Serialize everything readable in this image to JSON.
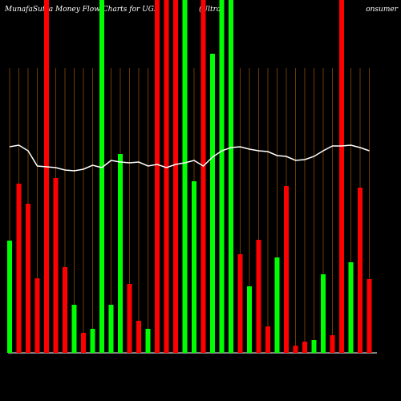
{
  "chart_data": {
    "type": "bar",
    "title": "MunafaSutra  Money Flow  Charts for UGE",
    "subtitle": "(Ultra",
    "right_title": "onsumer",
    "categories": [
      null,
      null,
      null,
      null,
      null,
      null,
      null,
      null,
      null,
      null,
      null,
      null,
      null,
      null,
      null,
      null,
      null,
      null,
      null,
      null,
      null,
      null,
      null,
      null,
      null,
      null,
      null,
      null,
      null,
      null,
      null,
      null,
      null,
      null,
      null,
      null,
      null,
      null,
      null,
      null
    ],
    "series": [
      {
        "type": "bar",
        "colors": [
          "#00ff00",
          "#ff0000",
          "#ff0000",
          "#ff0000",
          "#ff0000",
          "#ff0000",
          "#ff0000",
          "#00ff00",
          "#ff0000",
          "#00ff00",
          "#00ff00",
          "#00ff00",
          "#00ff00",
          "#ff0000",
          "#ff0000",
          "#00ff00",
          "#ff0000",
          "#ff0000",
          "#ff0000",
          "#00ff00",
          "#00ff00",
          "#ff0000",
          "#00ff00",
          "#00ff00",
          "#00ff00",
          "#ff0000",
          "#00ff00",
          "#ff0000",
          "#ff0000",
          "#00ff00",
          "#ff0000",
          "#ff0000",
          "#ff0000",
          "#00ff00",
          "#00ff00",
          "#ff0000",
          "#ff0000",
          "#00ff00",
          "#ff0000",
          "#ff0000"
        ],
        "values": [
          140,
          211,
          186,
          93,
          440,
          218,
          107,
          60,
          25,
          30,
          440,
          60,
          248,
          86,
          40,
          30,
          440,
          440,
          440,
          440,
          214,
          440,
          373,
          440,
          440,
          123,
          83,
          141,
          33,
          119,
          208,
          9,
          14,
          16,
          98,
          22,
          440,
          113,
          206,
          92
        ]
      },
      {
        "type": "line",
        "color": "#ffffff",
        "values": [
          257,
          259,
          252,
          233,
          232,
          231,
          228,
          227,
          229,
          234,
          231,
          240,
          238,
          237,
          238,
          233,
          235,
          231,
          235,
          237,
          240,
          233,
          244,
          252,
          256,
          257,
          254,
          252,
          251,
          246,
          245,
          240,
          241,
          245,
          252,
          258,
          258,
          259,
          256,
          252
        ]
      }
    ],
    "ylim": [
      0,
      440
    ]
  }
}
